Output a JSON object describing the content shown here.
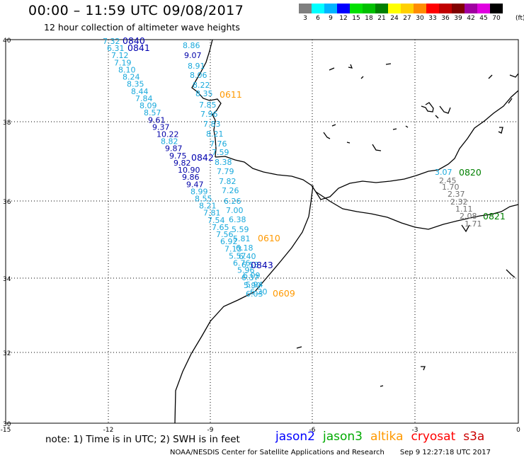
{
  "header": {
    "title": "00:00 – 11:59 UTC 09/08/2017",
    "subtitle": "12 hour collection of altimeter wave heights"
  },
  "colorbar": {
    "labels": [
      "3",
      "6",
      "9",
      "12",
      "15",
      "18",
      "21",
      "24",
      "27",
      "30",
      "33",
      "36",
      "39",
      "42",
      "45",
      "70"
    ],
    "colors": [
      "#7f7f7f",
      "#00ffff",
      "#00b4ff",
      "#0000ff",
      "#00e000",
      "#00c000",
      "#008000",
      "#ffff00",
      "#ffd000",
      "#ff8c00",
      "#ff0000",
      "#c00000",
      "#800000",
      "#a000a0",
      "#e000e0",
      "#000000"
    ],
    "unit": "(ft)"
  },
  "axes": {
    "lon_labels": [
      "-15",
      "-12",
      "-9",
      "-6",
      "-3",
      "0"
    ],
    "lat_labels": [
      "40",
      "38",
      "36",
      "34",
      "32",
      "30"
    ]
  },
  "tracks": [
    {
      "id": "0840",
      "satellite": "jason2",
      "color": "#0000b0"
    },
    {
      "id": "0841",
      "satellite": "jason2",
      "color": "#0000b0"
    },
    {
      "id": "0842",
      "satellite": "jason2",
      "color": "#0000b0"
    },
    {
      "id": "0843",
      "satellite": "jason2",
      "color": "#0000b0"
    },
    {
      "id": "0611",
      "satellite": "altika",
      "color": "#ff9900"
    },
    {
      "id": "0610",
      "satellite": "altika",
      "color": "#ff9900"
    },
    {
      "id": "0609",
      "satellite": "altika",
      "color": "#ff9900"
    },
    {
      "id": "0820",
      "satellite": "jason3",
      "color": "#008000"
    },
    {
      "id": "0821",
      "satellite": "jason3",
      "color": "#008000"
    }
  ],
  "track_a_values": [
    "7.32",
    "6.31",
    "7.12",
    "7.19",
    "8.10",
    "8.24",
    "8.35",
    "8.44",
    "7.84",
    "8.09",
    "8.57",
    "9.61",
    "9.37",
    "10.22",
    "8.82",
    "9.87",
    "9.75",
    "9.82",
    "10.90",
    "9.86",
    "9.47",
    "8.99",
    "8.55",
    "8.21",
    "7.81",
    "7.54",
    "7.65",
    "7.56",
    "6.92",
    "7.13",
    "5.57",
    "6.76",
    "5.96",
    "6.37",
    "5.94",
    "6.20"
  ],
  "track_b_values": [
    "8.86",
    "9.07",
    "8.91",
    "8.06",
    "8.22",
    "8.35",
    "7.85",
    "7.96",
    "7.83",
    "8.21",
    "7.76",
    "7.59",
    "8.38",
    "7.79",
    "7.82",
    "7.26",
    "6.26",
    "7.00",
    "6.38",
    "5.59",
    "5.81",
    "6.18",
    "6.40",
    "6.53",
    "6.09",
    "5.90",
    "6.03"
  ],
  "track_med_values": [
    "3.07",
    "2.45",
    "1.70",
    "2.37",
    "2.32",
    "1.11",
    "2.08",
    "1.71"
  ],
  "footer": {
    "note": "note: 1) Time is in UTC; 2) SWH is in feet",
    "satellites": [
      {
        "name": "jason2",
        "color": "#0000ff"
      },
      {
        "name": "jason3",
        "color": "#00aa00"
      },
      {
        "name": "altika",
        "color": "#ff9900"
      },
      {
        "name": "cryosat",
        "color": "#ff0000"
      },
      {
        "name": "s3a",
        "color": "#cc0000"
      }
    ],
    "credit": "NOAA/NESDIS Center for Satellite Applications and Research",
    "timestamp": "Sep 9 12:27:18 UTC 2017"
  }
}
